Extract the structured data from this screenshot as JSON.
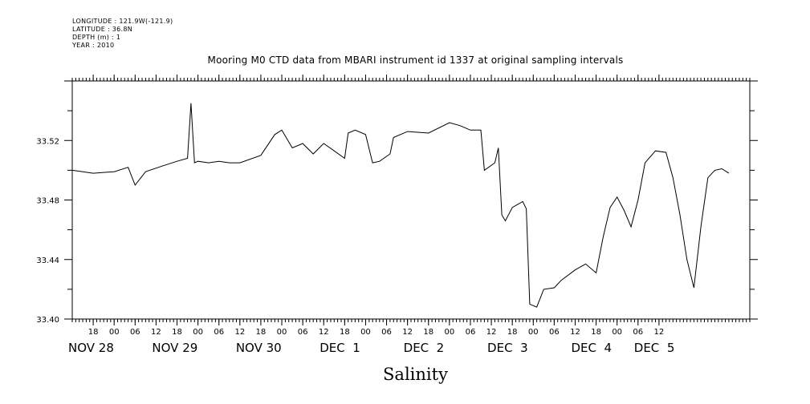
{
  "header": {
    "longitude": "LONGITUDE : 121.9W(-121.9)",
    "latitude": "LATITUDE : 36.8N",
    "depth": "DEPTH (m) : 1",
    "year": "YEAR : 2010"
  },
  "chart_data": {
    "type": "line",
    "title": "Mooring M0 CTD data from MBARI instrument id 1337 at original sampling intervals",
    "xlabel": "Salinity",
    "ylabel": "",
    "ylim": [
      33.4,
      33.56
    ],
    "yticks": [
      "33.40",
      "33.44",
      "33.48",
      "33.52"
    ],
    "ytick_values": [
      33.4,
      33.44,
      33.48,
      33.52
    ],
    "xlim": [
      "2010-11-27T12:00",
      "2010-12-05T14:00"
    ],
    "x_hour_ticks": [
      {
        "t": "2010-11-27T18:00",
        "label": "18"
      },
      {
        "t": "2010-11-28T00:00",
        "label": "00"
      },
      {
        "t": "2010-11-28T06:00",
        "label": "06"
      },
      {
        "t": "2010-11-28T12:00",
        "label": "12"
      },
      {
        "t": "2010-11-28T18:00",
        "label": "18"
      },
      {
        "t": "2010-11-29T00:00",
        "label": "00"
      },
      {
        "t": "2010-11-29T06:00",
        "label": "06"
      },
      {
        "t": "2010-11-29T12:00",
        "label": "12"
      },
      {
        "t": "2010-11-29T18:00",
        "label": "18"
      },
      {
        "t": "2010-11-30T00:00",
        "label": "00"
      },
      {
        "t": "2010-11-30T06:00",
        "label": "06"
      },
      {
        "t": "2010-11-30T12:00",
        "label": "12"
      },
      {
        "t": "2010-11-30T18:00",
        "label": "18"
      },
      {
        "t": "2010-12-01T00:00",
        "label": "00"
      },
      {
        "t": "2010-12-01T06:00",
        "label": "06"
      },
      {
        "t": "2010-12-01T12:00",
        "label": "12"
      },
      {
        "t": "2010-12-01T18:00",
        "label": "18"
      },
      {
        "t": "2010-12-02T00:00",
        "label": "00"
      },
      {
        "t": "2010-12-02T06:00",
        "label": "06"
      },
      {
        "t": "2010-12-02T12:00",
        "label": "12"
      },
      {
        "t": "2010-12-02T18:00",
        "label": "18"
      },
      {
        "t": "2010-12-03T00:00",
        "label": "00"
      },
      {
        "t": "2010-12-03T06:00",
        "label": "06"
      },
      {
        "t": "2010-12-03T12:00",
        "label": "12"
      },
      {
        "t": "2010-12-03T18:00",
        "label": "18"
      },
      {
        "t": "2010-12-04T00:00",
        "label": "00"
      },
      {
        "t": "2010-12-04T06:00",
        "label": "06"
      },
      {
        "t": "2010-12-04T12:00",
        "label": "12"
      }
    ],
    "x_day_labels": [
      {
        "t": "2010-11-27T12:00",
        "label": "NOV 28"
      },
      {
        "t": "2010-11-28T12:00",
        "label": "NOV 29"
      },
      {
        "t": "2010-11-29T12:00",
        "label": "NOV 30"
      },
      {
        "t": "2010-11-30T12:00",
        "label": "DEC  1"
      },
      {
        "t": "2010-12-01T12:00",
        "label": "DEC  2"
      },
      {
        "t": "2010-12-02T12:00",
        "label": "DEC  3"
      },
      {
        "t": "2010-12-03T12:00",
        "label": "DEC  4"
      },
      {
        "t": "2010-12-04T06:00",
        "label": "DEC  5"
      }
    ],
    "series": [
      {
        "color": "#000000",
        "points": [
          [
            "2010-11-27T12:00",
            33.5
          ],
          [
            "2010-11-27T18:00",
            33.498
          ],
          [
            "2010-11-28T00:00",
            33.499
          ],
          [
            "2010-11-28T04:00",
            33.502
          ],
          [
            "2010-11-28T06:00",
            33.49
          ],
          [
            "2010-11-28T09:00",
            33.499
          ],
          [
            "2010-11-28T14:00",
            33.503
          ],
          [
            "2010-11-28T18:00",
            33.506
          ],
          [
            "2010-11-28T21:00",
            33.508
          ],
          [
            "2010-11-28T22:00",
            33.545
          ],
          [
            "2010-11-28T23:00",
            33.505
          ],
          [
            "2010-11-29T00:00",
            33.506
          ],
          [
            "2010-11-29T03:00",
            33.505
          ],
          [
            "2010-11-29T06:00",
            33.506
          ],
          [
            "2010-11-29T09:00",
            33.505
          ],
          [
            "2010-11-29T12:00",
            33.505
          ],
          [
            "2010-11-29T18:00",
            33.51
          ],
          [
            "2010-11-29T22:00",
            33.524
          ],
          [
            "2010-11-30T00:00",
            33.527
          ],
          [
            "2010-11-30T03:00",
            33.515
          ],
          [
            "2010-11-30T06:00",
            33.518
          ],
          [
            "2010-11-30T09:00",
            33.511
          ],
          [
            "2010-11-30T12:00",
            33.518
          ],
          [
            "2010-11-30T15:00",
            33.513
          ],
          [
            "2010-11-30T18:00",
            33.508
          ],
          [
            "2010-11-30T19:00",
            33.525
          ],
          [
            "2010-11-30T21:00",
            33.527
          ],
          [
            "2010-12-01T00:00",
            33.524
          ],
          [
            "2010-12-01T02:00",
            33.505
          ],
          [
            "2010-12-01T04:00",
            33.506
          ],
          [
            "2010-12-01T07:00",
            33.511
          ],
          [
            "2010-12-01T08:00",
            33.522
          ],
          [
            "2010-12-01T12:00",
            33.526
          ],
          [
            "2010-12-01T18:00",
            33.525
          ],
          [
            "2010-12-02T00:00",
            33.532
          ],
          [
            "2010-12-02T03:00",
            33.53
          ],
          [
            "2010-12-02T06:00",
            33.527
          ],
          [
            "2010-12-02T09:00",
            33.527
          ],
          [
            "2010-12-02T10:00",
            33.5
          ],
          [
            "2010-12-02T13:00",
            33.505
          ],
          [
            "2010-12-02T14:00",
            33.515
          ],
          [
            "2010-12-02T15:00",
            33.47
          ],
          [
            "2010-12-02T16:00",
            33.466
          ],
          [
            "2010-12-02T18:00",
            33.475
          ],
          [
            "2010-12-02T21:00",
            33.479
          ],
          [
            "2010-12-02T22:00",
            33.474
          ],
          [
            "2010-12-02T23:00",
            33.41
          ],
          [
            "2010-12-03T01:00",
            33.408
          ],
          [
            "2010-12-03T03:00",
            33.42
          ],
          [
            "2010-12-03T06:00",
            33.421
          ],
          [
            "2010-12-03T08:00",
            33.426
          ],
          [
            "2010-12-03T12:00",
            33.433
          ],
          [
            "2010-12-03T15:00",
            33.437
          ],
          [
            "2010-12-03T18:00",
            33.431
          ],
          [
            "2010-12-03T20:00",
            33.455
          ],
          [
            "2010-12-03T22:00",
            33.475
          ],
          [
            "2010-12-04T00:00",
            33.482
          ],
          [
            "2010-12-04T02:00",
            33.473
          ],
          [
            "2010-12-04T04:00",
            33.462
          ],
          [
            "2010-12-04T06:00",
            33.48
          ],
          [
            "2010-12-04T08:00",
            33.505
          ],
          [
            "2010-12-04T11:00",
            33.513
          ],
          [
            "2010-12-04T14:00",
            33.512
          ],
          [
            "2010-12-04T16:00",
            33.495
          ],
          [
            "2010-12-04T18:00",
            33.47
          ],
          [
            "2010-12-04T20:00",
            33.44
          ],
          [
            "2010-12-04T22:00",
            33.421
          ],
          [
            "2010-12-05T00:00",
            33.462
          ],
          [
            "2010-12-05T02:00",
            33.495
          ],
          [
            "2010-12-05T04:00",
            33.5
          ],
          [
            "2010-12-05T06:00",
            33.501
          ],
          [
            "2010-12-05T08:00",
            33.498
          ]
        ]
      }
    ]
  }
}
